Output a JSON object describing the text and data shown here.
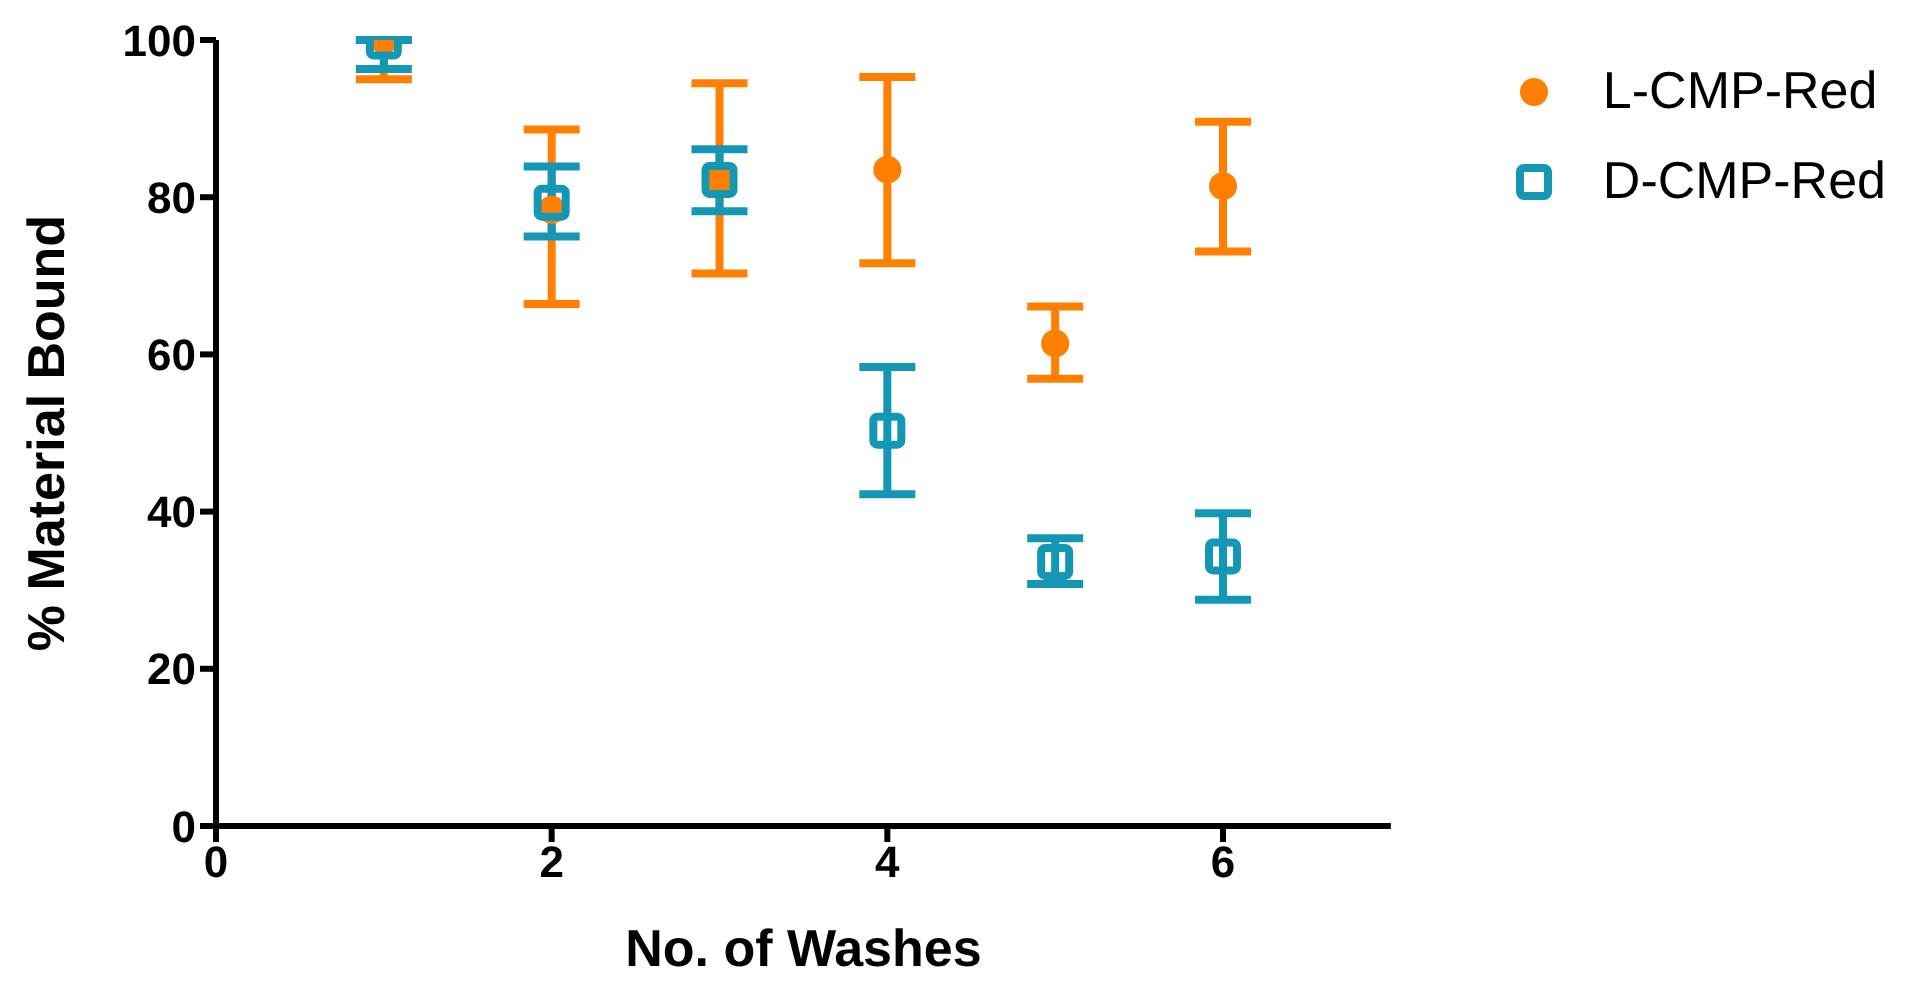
{
  "chart_data": {
    "type": "scatter",
    "xlabel": "No. of Washes",
    "ylabel": "% Material Bound",
    "x": [
      1,
      2,
      3,
      4,
      5,
      6
    ],
    "series": [
      {
        "name": "L-CMP-Red",
        "color": "#ff8000",
        "marker": "circle",
        "values": [
          100,
          78.4,
          82.2,
          83.5,
          61.4,
          81.4
        ],
        "errors": [
          [
            95,
            100
          ],
          [
            66.4,
            88.6
          ],
          [
            70.3,
            94.5
          ],
          [
            71.6,
            95.3
          ],
          [
            56.9,
            66.1
          ],
          [
            73.1,
            89.6
          ]
        ]
      },
      {
        "name": "D-CMP-Red",
        "color": "#1497b4",
        "marker": "square",
        "values": [
          99.8,
          79.3,
          82.2,
          50.3,
          33.6,
          34.3
        ],
        "errors": [
          [
            96.3,
            100
          ],
          [
            75,
            83.9
          ],
          [
            78.2,
            86.1
          ],
          [
            42.2,
            58.4
          ],
          [
            30.8,
            36.6
          ],
          [
            28.8,
            39.8
          ]
        ]
      }
    ],
    "xlim": [
      0,
      7
    ],
    "xticks": [
      0,
      2,
      4,
      6
    ],
    "ylim": [
      0,
      100
    ],
    "yticks": [
      0,
      20,
      40,
      60,
      80,
      100
    ],
    "grid": false,
    "legend": "top right"
  }
}
